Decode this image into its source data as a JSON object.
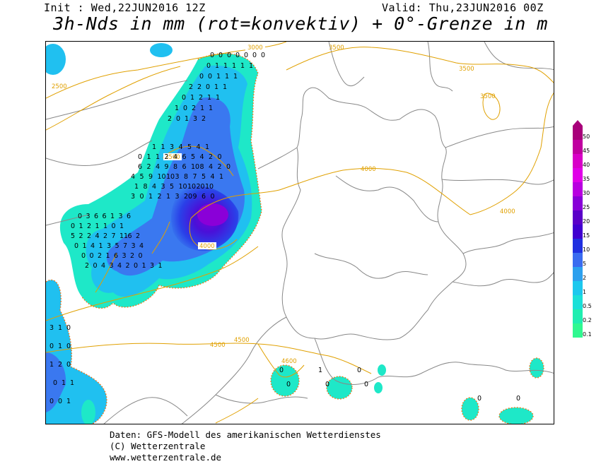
{
  "header": {
    "init": "Init : Wed,22JUN2016 12Z",
    "valid": "Valid: Thu,23JUN2016 00Z",
    "title": "3h-Nds in mm (rot=konvektiv) + 0°-Grenze in m"
  },
  "legend": {
    "labels": [
      "50",
      "45",
      "40",
      "35",
      "30",
      "25",
      "20",
      "15",
      "10",
      "5",
      "2",
      "1",
      "0.5",
      "0.2",
      "0.1"
    ],
    "colors": [
      "#a8007a",
      "#c000a0",
      "#d800c8",
      "#e000e8",
      "#b800e0",
      "#8800d8",
      "#5a00c8",
      "#4000d0",
      "#2030e0",
      "#3a6cf0",
      "#2ca0ee",
      "#1cc8ee",
      "#1ae0d8",
      "#20eeb0",
      "#30f890"
    ]
  },
  "isolines": {
    "color": "#e0a000",
    "labels": [
      "3000",
      "3500",
      "3500",
      "3500",
      "2500",
      "3500",
      "4000",
      "4000",
      "4000",
      "4500",
      "4500",
      "4600"
    ]
  },
  "precip_values": {
    "cluster_north": [
      "0",
      "0",
      "0",
      "0",
      "0",
      "0",
      "0",
      "0",
      "1",
      "1",
      "1",
      "1",
      "1",
      "0",
      "0",
      "1",
      "1",
      "1",
      "2",
      "2",
      "0",
      "1",
      "1",
      "0",
      "1",
      "2",
      "1",
      "1",
      "1",
      "0",
      "2",
      "1",
      "1",
      "2",
      "0",
      "1",
      "3",
      "2"
    ],
    "cluster_core": [
      "1",
      "1",
      "3",
      "4",
      "5",
      "4",
      "1",
      "0",
      "1",
      "1",
      "2",
      "4",
      "6",
      "5",
      "4",
      "2",
      "0",
      "6",
      "2",
      "4",
      "9",
      "8",
      "6",
      "10",
      "8",
      "4",
      "2",
      "0",
      "4",
      "5",
      "9",
      "10",
      "10",
      "3",
      "8",
      "7",
      "5",
      "4",
      "1",
      "1",
      "8",
      "4",
      "3",
      "5",
      "10",
      "10",
      "20",
      "10",
      "3",
      "0",
      "1",
      "2",
      "1",
      "3",
      "20",
      "9",
      "6",
      "0"
    ],
    "cluster_west": [
      "0",
      "3",
      "6",
      "6",
      "1",
      "3",
      "6",
      "0",
      "1",
      "2",
      "1",
      "1",
      "0",
      "1",
      "5",
      "2",
      "2",
      "4",
      "2",
      "7",
      "11",
      "6",
      "2",
      "0",
      "1",
      "4",
      "1",
      "3",
      "5",
      "7",
      "3",
      "4",
      "0",
      "0",
      "2",
      "1",
      "6",
      "3",
      "2",
      "0",
      "2",
      "0",
      "4",
      "3",
      "4",
      "2",
      "0",
      "1",
      "3",
      "1"
    ],
    "cluster_southwest": [
      "3",
      "1",
      "0",
      "0",
      "1",
      "0",
      "1",
      "2",
      "0",
      "0",
      "1",
      "1",
      "0",
      "0",
      "1"
    ],
    "cluster_south": [
      "0",
      "1",
      "0",
      "0",
      "0",
      "0",
      "0",
      "0"
    ]
  },
  "credits": {
    "line1": "Daten: GFS-Modell des amerikanischen Wetterdienstes",
    "line2": "(C) Wetterzentrale",
    "line3": "www.wetterzentrale.de"
  }
}
